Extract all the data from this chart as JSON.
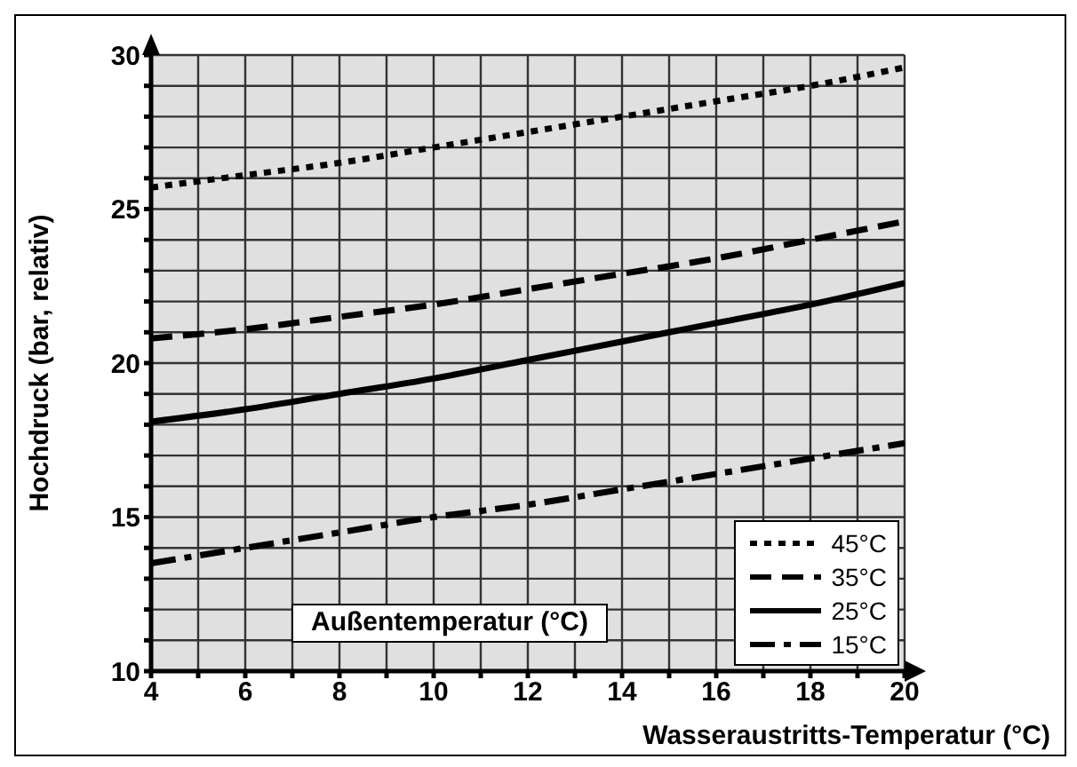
{
  "chart_data": {
    "type": "line",
    "xlabel": "Wasseraustritts-Temperatur (°C)",
    "ylabel": "Hochdruck (bar, relativ)",
    "legend_title": "Außentemperatur (°C)",
    "x": [
      4,
      6,
      8,
      10,
      12,
      14,
      16,
      18,
      20
    ],
    "series": [
      {
        "name": "45°C",
        "color": "#000000",
        "line_style": "dotted",
        "values": [
          25.7,
          26.1,
          26.5,
          27.0,
          27.5,
          28.0,
          28.5,
          29.0,
          29.6
        ]
      },
      {
        "name": "35°C",
        "color": "#000000",
        "line_style": "dashed",
        "values": [
          20.8,
          21.1,
          21.5,
          21.9,
          22.4,
          22.9,
          23.4,
          24.0,
          24.6
        ]
      },
      {
        "name": "25°C",
        "color": "#000000",
        "line_style": "solid",
        "values": [
          18.1,
          18.5,
          19.0,
          19.5,
          20.1,
          20.7,
          21.3,
          21.9,
          22.6
        ]
      },
      {
        "name": "15°C",
        "color": "#000000",
        "line_style": "dashdot",
        "values": [
          13.5,
          14.0,
          14.5,
          15.0,
          15.4,
          15.9,
          16.4,
          16.9,
          17.4
        ]
      }
    ],
    "xlim": [
      4,
      20
    ],
    "xticks": [
      4,
      {
        "value": 5,
        "label": null
      },
      6,
      {
        "value": 7,
        "label": null
      },
      8,
      {
        "value": 9,
        "label": null
      },
      10,
      {
        "value": 11,
        "label": null
      },
      12,
      {
        "value": 13,
        "label": null
      },
      14,
      {
        "value": 15,
        "label": null
      },
      16,
      {
        "value": 17,
        "label": null
      },
      18,
      {
        "value": 19,
        "label": null
      },
      20
    ],
    "ylim": [
      10,
      30
    ],
    "yticks": [
      10,
      {
        "value": 11,
        "label": null
      },
      {
        "value": 12,
        "label": null
      },
      {
        "value": 13,
        "label": null
      },
      {
        "value": 14,
        "label": null
      },
      15,
      {
        "value": 16,
        "label": null
      },
      {
        "value": 17,
        "label": null
      },
      {
        "value": 18,
        "label": null
      },
      {
        "value": 19,
        "label": null
      },
      20,
      {
        "value": 21,
        "label": null
      },
      {
        "value": 22,
        "label": null
      },
      {
        "value": 23,
        "label": null
      },
      {
        "value": 24,
        "label": null
      },
      25,
      {
        "value": 26,
        "label": null
      },
      {
        "value": 27,
        "label": null
      },
      {
        "value": 28,
        "label": null
      },
      {
        "value": 29,
        "label": null
      },
      30
    ],
    "grid": true,
    "legend": "bottom right",
    "marker": "none"
  }
}
